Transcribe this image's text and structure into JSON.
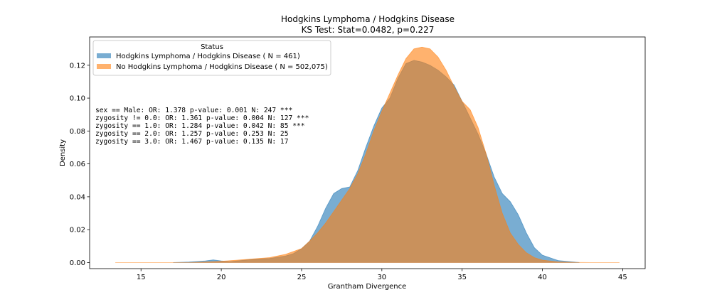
{
  "chart_data": {
    "type": "area",
    "title": "Hodgkins Lymphoma / Hodgkins Disease",
    "subtitle": "KS Test: Stat=0.0482, p=0.227",
    "xlabel": "Grantham Divergence",
    "ylabel": "Density",
    "xlim": [
      11.8,
      46.4
    ],
    "ylim": [
      -0.0037,
      0.1372
    ],
    "xticks": [
      15,
      20,
      25,
      30,
      35,
      40,
      45
    ],
    "yticks": [
      0.0,
      0.02,
      0.04,
      0.06,
      0.08,
      0.1,
      0.12
    ],
    "legend": {
      "title": "Status",
      "position": "top-left",
      "entries": [
        "Hodgkins Lymphoma / Hodgkins Disease ( N = 461)",
        "No Hodgkins Lymphoma / Hodgkins Disease ( N = 502,075)"
      ]
    },
    "annotations": [
      "sex == Male: OR: 1.378 p-value: 0.001 N: 247 ***",
      "zygosity != 0.0: OR: 1.361 p-value: 0.004 N: 127 ***",
      "zygosity == 1.0: OR: 1.284 p-value: 0.042 N: 85 ***",
      "zygosity == 2.0: OR: 1.257 p-value: 0.253 N: 25",
      "zygosity == 3.0: OR: 1.467 p-value: 0.135 N: 17"
    ],
    "series": [
      {
        "name": "Hodgkins Lymphoma / Hodgkins Disease ( N = 461)",
        "color": "#1f77b4",
        "x": [
          17,
          18,
          19,
          19.5,
          20,
          20.5,
          21,
          22,
          23,
          24,
          24.5,
          25,
          25.5,
          26,
          26.5,
          27,
          27.5,
          28,
          28.5,
          29,
          29.5,
          30,
          30.5,
          31,
          31.5,
          32,
          32.5,
          33,
          33.5,
          34,
          34.5,
          35,
          35.5,
          36,
          36.5,
          37,
          37.5,
          38,
          38.5,
          39,
          39.5,
          40,
          41,
          42.3
        ],
        "y": [
          0,
          0.0003,
          0.001,
          0.0016,
          0.001,
          0.0006,
          0.001,
          0.002,
          0.0025,
          0.004,
          0.0055,
          0.0085,
          0.013,
          0.022,
          0.033,
          0.042,
          0.045,
          0.046,
          0.056,
          0.07,
          0.083,
          0.094,
          0.1,
          0.112,
          0.121,
          0.123,
          0.122,
          0.12,
          0.117,
          0.113,
          0.108,
          0.098,
          0.088,
          0.078,
          0.066,
          0.052,
          0.042,
          0.037,
          0.029,
          0.018,
          0.009,
          0.0045,
          0.0012,
          0
        ]
      },
      {
        "name": "No Hodgkins Lymphoma / Hodgkins Disease ( N = 502,075)",
        "color": "#ff7f0e",
        "x": [
          13.4,
          16,
          18,
          19,
          20,
          21,
          22,
          23,
          24,
          25,
          25.5,
          26,
          26.5,
          27,
          27.5,
          28,
          28.5,
          29,
          29.5,
          30,
          30.5,
          31,
          31.5,
          32,
          32.5,
          33,
          33.5,
          34,
          34.5,
          35,
          35.5,
          36,
          36.5,
          37,
          37.5,
          38,
          38.5,
          39,
          39.5,
          40,
          41,
          42,
          43,
          44.8
        ],
        "y": [
          0,
          0,
          0,
          0.0003,
          0.0008,
          0.0015,
          0.0022,
          0.003,
          0.005,
          0.0085,
          0.013,
          0.018,
          0.024,
          0.031,
          0.038,
          0.045,
          0.054,
          0.066,
          0.08,
          0.092,
          0.103,
          0.114,
          0.124,
          0.13,
          0.131,
          0.13,
          0.125,
          0.117,
          0.107,
          0.098,
          0.093,
          0.082,
          0.066,
          0.047,
          0.03,
          0.018,
          0.011,
          0.006,
          0.003,
          0.0015,
          0.0004,
          0.0001,
          0,
          0
        ]
      }
    ]
  }
}
